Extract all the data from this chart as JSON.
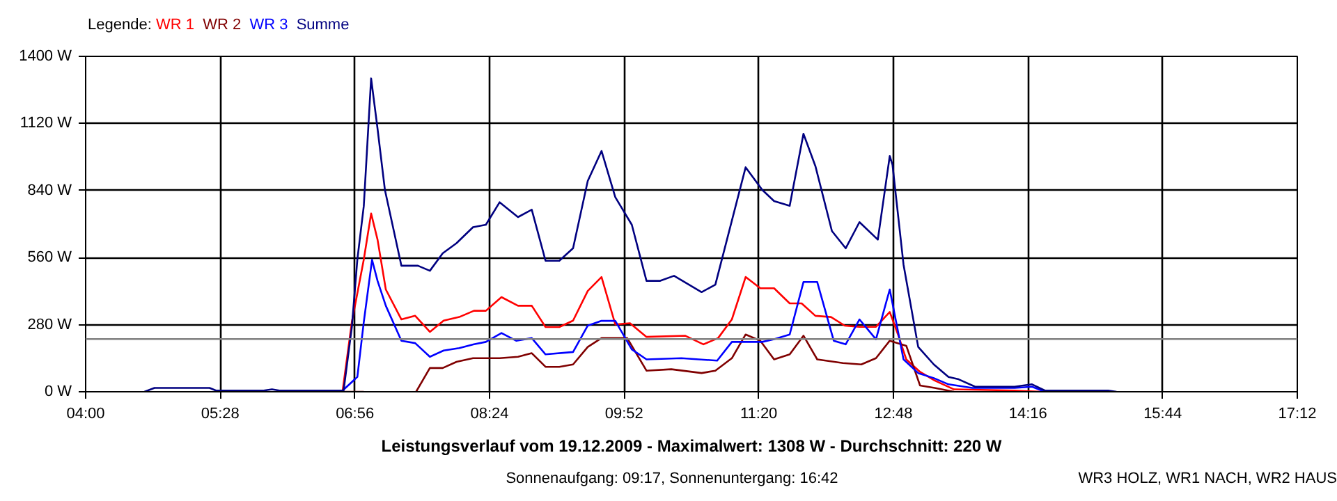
{
  "chart_data": {
    "type": "line",
    "title": "Leistungsverlauf vom 19.12.2009 - Maximalwert: 1308 W - Durchschnitt: 220 W",
    "subtitle": "Sonnenaufgang: 09:17, Sonnenuntergang: 16:42",
    "annotations": [
      "WR3 HOLZ, WR1 NACH, WR2 HAUS"
    ],
    "legend_title": "Legende:",
    "legend": "top left",
    "grid": true,
    "xlim": [
      4,
      17.2
    ],
    "xticks": [
      {
        "value": 4,
        "label": "04:00"
      },
      {
        "value": 5.4667,
        "label": "05:28"
      },
      {
        "value": 6.9333,
        "label": "06:56"
      },
      {
        "value": 8.4,
        "label": "08:24"
      },
      {
        "value": 9.8667,
        "label": "09:52"
      },
      {
        "value": 11.3333,
        "label": "11:20"
      },
      {
        "value": 12.8,
        "label": "12:48"
      },
      {
        "value": 14.2667,
        "label": "14:16"
      },
      {
        "value": 15.7333,
        "label": "15:44"
      },
      {
        "value": 17.2,
        "label": "17:12"
      }
    ],
    "ylim": [
      0,
      1400
    ],
    "yticks": [
      {
        "value": 0,
        "label": "0 W"
      },
      {
        "value": 280,
        "label": "280 W"
      },
      {
        "value": 560,
        "label": "560 W"
      },
      {
        "value": 840,
        "label": "840 W"
      },
      {
        "value": 1120,
        "label": "1120 W"
      },
      {
        "value": 1400,
        "label": "1400 W"
      }
    ],
    "ref_lines": [
      {
        "axis": "y",
        "value": 220,
        "color": "#808080"
      }
    ],
    "series": [
      {
        "name": "WR 1",
        "color": "#ff0000",
        "x": [
          6.8,
          6.9,
          7.03,
          7.11,
          7.18,
          7.27,
          7.44,
          7.59,
          7.75,
          7.9,
          8.07,
          8.23,
          8.36,
          8.53,
          8.71,
          8.86,
          9.01,
          9.16,
          9.31,
          9.47,
          9.62,
          9.77,
          9.93,
          10.11,
          10.53,
          10.73,
          10.89,
          11.04,
          11.19,
          11.35,
          11.5,
          11.67,
          11.8,
          11.95,
          12.12,
          12.27,
          12.43,
          12.61,
          12.76,
          12.85,
          12.94,
          13.09,
          13.25,
          13.46,
          14.12,
          14.42
        ],
        "values": [
          5,
          291,
          552,
          744,
          635,
          427,
          302,
          317,
          250,
          297,
          312,
          338,
          338,
          395,
          359,
          359,
          270,
          270,
          297,
          421,
          479,
          281,
          286,
          229,
          234,
          198,
          224,
          302,
          479,
          432,
          432,
          369,
          369,
          317,
          312,
          276,
          271,
          271,
          333,
          239,
          135,
          83,
          47,
          10,
          5,
          0
        ]
      },
      {
        "name": "WR 2",
        "color": "#800000",
        "x": [
          6.8,
          7.03,
          7.29,
          7.6,
          7.75,
          7.89,
          8.04,
          8.22,
          8.51,
          8.71,
          8.86,
          9.01,
          9.16,
          9.31,
          9.47,
          9.62,
          9.9,
          10.11,
          10.38,
          10.71,
          10.86,
          11.04,
          11.19,
          11.35,
          11.5,
          11.67,
          11.82,
          11.97,
          12.25,
          12.45,
          12.61,
          12.76,
          12.94,
          13.09,
          13.25,
          13.46
        ],
        "values": [
          0,
          0,
          null,
          0,
          99,
          99,
          125,
          140,
          140,
          146,
          161,
          104,
          104,
          114,
          187,
          224,
          224,
          88,
          94,
          78,
          88,
          140,
          239,
          213,
          135,
          156,
          234,
          135,
          120,
          114,
          140,
          213,
          192,
          26,
          16,
          0
        ]
      },
      {
        "name": "WR 3",
        "color": "#0000ff",
        "x": [
          6.8,
          6.96,
          7.03,
          7.12,
          7.18,
          7.27,
          7.44,
          7.59,
          7.75,
          7.9,
          8.07,
          8.23,
          8.36,
          8.53,
          8.69,
          8.86,
          9.01,
          9.31,
          9.47,
          9.62,
          9.77,
          9.95,
          10.11,
          10.49,
          10.88,
          11.04,
          11.37,
          11.5,
          11.67,
          11.82,
          11.97,
          12.15,
          12.28,
          12.43,
          12.61,
          12.76,
          12.91,
          13.07,
          13.24,
          13.4,
          13.66,
          14.12,
          14.31,
          14.45
        ],
        "values": [
          5,
          62,
          291,
          551,
          463,
          359,
          213,
          203,
          146,
          172,
          182,
          198,
          208,
          245,
          213,
          224,
          156,
          166,
          276,
          296,
          296,
          177,
          135,
          140,
          130,
          208,
          208,
          219,
          239,
          458,
          458,
          213,
          198,
          302,
          219,
          427,
          135,
          78,
          57,
          31,
          16,
          16,
          21,
          0
        ]
      },
      {
        "name": "Summe",
        "color": "#000080",
        "x": [
          4.64,
          4.75,
          5.35,
          5.42,
          5.94,
          6.03,
          6.11,
          6.81,
          6.9,
          6.96,
          7.03,
          7.11,
          7.18,
          7.26,
          7.44,
          7.62,
          7.75,
          7.89,
          8.04,
          8.22,
          8.36,
          8.51,
          8.71,
          8.86,
          9.01,
          9.16,
          9.31,
          9.47,
          9.62,
          9.77,
          9.95,
          10.11,
          10.26,
          10.41,
          10.71,
          10.86,
          11.19,
          11.37,
          11.5,
          11.67,
          11.82,
          11.95,
          12.13,
          12.28,
          12.43,
          12.63,
          12.76,
          12.79,
          12.91,
          13.07,
          13.24,
          13.4,
          13.51,
          13.69,
          14.12,
          14.31,
          14.45,
          15.14,
          15.23
        ],
        "values": [
          0,
          16,
          16,
          5,
          5,
          10,
          5,
          5,
          270,
          552,
          775,
          1308,
          1098,
          843,
          526,
          526,
          505,
          578,
          620,
          687,
          697,
          791,
          729,
          760,
          547,
          547,
          599,
          880,
          1005,
          812,
          697,
          463,
          463,
          484,
          416,
          447,
          937,
          843,
          796,
          776,
          1077,
          942,
          671,
          599,
          708,
          635,
          984,
          947,
          531,
          187,
          114,
          62,
          52,
          21,
          21,
          31,
          5,
          5,
          0
        ]
      }
    ]
  }
}
